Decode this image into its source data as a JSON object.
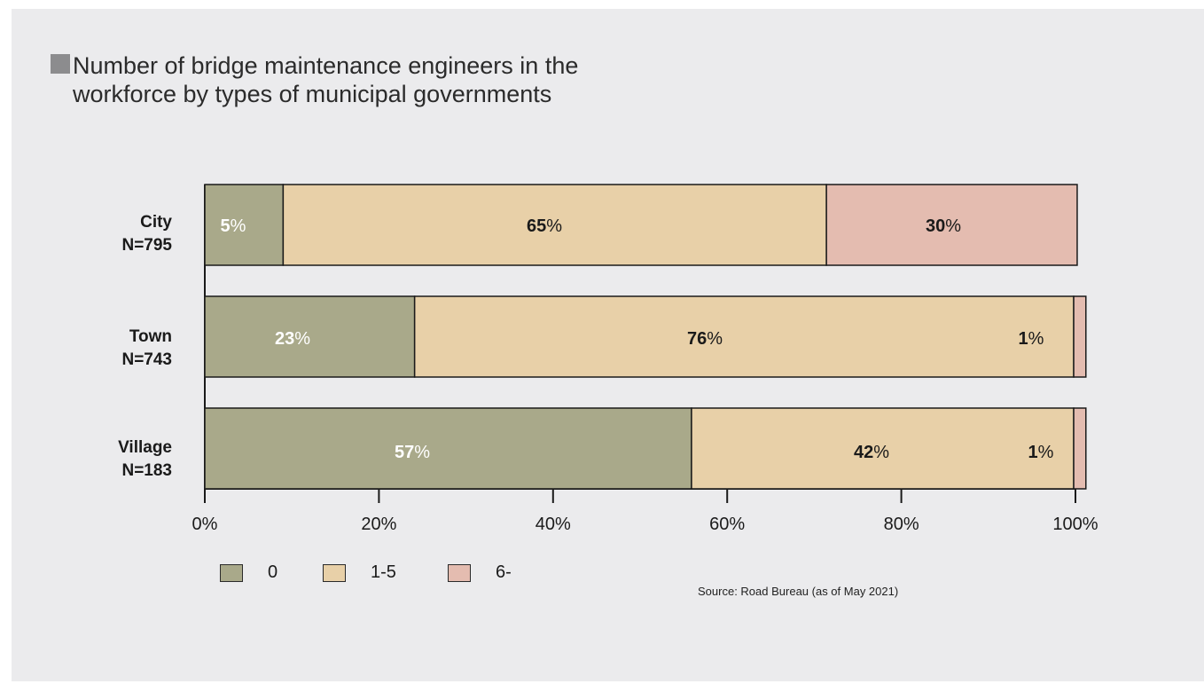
{
  "title": "Number of bridge maintenance engineers in the workforce by types of municipal governments",
  "title_lines": [
    "Number of bridge maintenance engineers in the",
    "workforce by types of municipal governments"
  ],
  "source": "Source: Road Bureau (as of May 2021)",
  "legend": [
    {
      "label": "0",
      "color": "#a9a98a"
    },
    {
      "label": "1-5",
      "color": "#e8d0a8"
    },
    {
      "label": "6-",
      "color": "#e4bcb0"
    }
  ],
  "chart_data": {
    "type": "bar",
    "orientation": "horizontal",
    "stacked": true,
    "categories": [
      {
        "name": "City",
        "n": "N=795"
      },
      {
        "name": "Town",
        "n": "N=743"
      },
      {
        "name": "Village",
        "n": "N=183"
      }
    ],
    "series": [
      {
        "name": "0",
        "values": [
          5,
          23,
          57
        ],
        "labels": [
          "5%",
          "23%",
          "57%"
        ],
        "color": "#a9a98a",
        "label_color": "#ffffff"
      },
      {
        "name": "1-5",
        "values": [
          65,
          76,
          42
        ],
        "labels": [
          "65%",
          "76%",
          "42%"
        ],
        "color": "#e8d0a8",
        "label_color": "#1a1a1a"
      },
      {
        "name": "6-",
        "values": [
          30,
          1,
          1
        ],
        "labels": [
          "30%",
          "1%",
          "1%"
        ],
        "color": "#e4bcb0",
        "label_color": "#1a1a1a"
      }
    ],
    "bar_extents": [
      [
        9,
        71.4,
        100.2
      ],
      [
        24.1,
        99.8,
        101.2
      ],
      [
        55.9,
        99.8,
        101.2
      ]
    ],
    "xlim": [
      0,
      100
    ],
    "x_ticks": [
      "0%",
      "20%",
      "40%",
      "60%",
      "80%",
      "100%"
    ],
    "grid": false,
    "legend_position": "bottom-left"
  }
}
